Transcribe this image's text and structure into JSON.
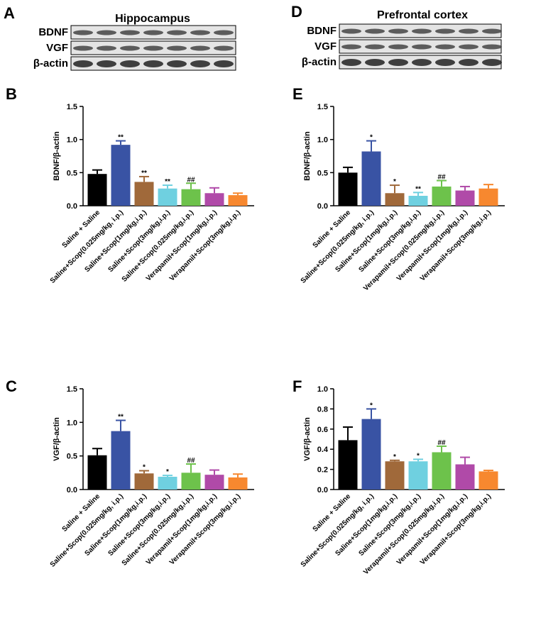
{
  "panels": [
    {
      "letter": "A",
      "title": "Hippocampus",
      "rows": [
        "BDNF",
        "VGF",
        "β-actin"
      ]
    },
    {
      "letter": "D",
      "title": "Prefrontal cortex",
      "rows": [
        "BDNF",
        "VGF",
        "β-actin"
      ]
    }
  ],
  "chart_data": [
    {
      "type": "bar",
      "panel": "B",
      "ylabel": "BDNF/β-actin",
      "categories": [
        "Saline + Saline",
        "Saline+Scop(0.025mg/kg, i.p.)",
        "Saline+Scop(1mg/kg,i.p.)",
        "Saline+Scop(3mg/kg,i.p.)",
        "Saline+Scop(0.025mg/kg,i.p.)",
        "Verapamil+Scop(1mg/kg,i.p.)",
        "Verapamil+Scop(3mg/kg,i.p.)"
      ],
      "values": [
        0.48,
        0.92,
        0.36,
        0.26,
        0.25,
        0.19,
        0.16
      ],
      "errors": [
        0.06,
        0.06,
        0.08,
        0.05,
        0.09,
        0.08,
        0.03
      ],
      "annotations": [
        null,
        "**",
        "**",
        "**",
        "##",
        null,
        null
      ],
      "colors": [
        "#000000",
        "#3953a4",
        "#a0693a",
        "#6fd0e0",
        "#6dc24b",
        "#b04aa8",
        "#f7882f"
      ],
      "ylim": [
        0,
        1.5
      ],
      "yticks": [
        {
          "value": 0,
          "label": "0.0"
        },
        0.5,
        {
          "value": 1,
          "label": "1.0"
        },
        1.5
      ]
    },
    {
      "type": "bar",
      "panel": "E",
      "ylabel": "BDNF/β-actin",
      "categories": [
        "Saline + Saline",
        "Saline+Scop(0.025mg/kg, i.p.)",
        "Saline+Scop(1mg/kg,i.p.)",
        "Saline+Scop(3mg/kg,i.p.)",
        "Verapamil+Scop(0.025mg/kg,i.p.)",
        "Verapamil+Scop(1mg/kg,i.p.)",
        "Verapamil+Scop(3mg/kg,i.p.)"
      ],
      "values": [
        0.5,
        0.82,
        0.19,
        0.15,
        0.29,
        0.23,
        0.26
      ],
      "errors": [
        0.08,
        0.16,
        0.12,
        0.05,
        0.09,
        0.06,
        0.06
      ],
      "annotations": [
        null,
        "*",
        "*",
        "**",
        "##",
        null,
        null
      ],
      "colors": [
        "#000000",
        "#3953a4",
        "#a0693a",
        "#6fd0e0",
        "#6dc24b",
        "#b04aa8",
        "#f7882f"
      ],
      "ylim": [
        0,
        1.5
      ],
      "yticks": [
        {
          "value": 0,
          "label": "0.0"
        },
        0.5,
        {
          "value": 1,
          "label": "1.0"
        },
        1.5
      ]
    },
    {
      "type": "bar",
      "panel": "C",
      "ylabel": "VGF/β-actin",
      "categories": [
        "Saline + Saline",
        "Saline+Scop(0.025mg/kg, i.p.)",
        "Saline+Scop(1mg/kg,i.p.)",
        "Saline+Scop(3mg/kg,i.p.)",
        "Saline+Scop(0.025mg/kg,i.p.)",
        "Verapamil+Scop(1mg/kg,i.p.)",
        "Verapamil+Scop(3mg/kg,i.p.)"
      ],
      "values": [
        0.51,
        0.87,
        0.24,
        0.19,
        0.25,
        0.22,
        0.18
      ],
      "errors": [
        0.1,
        0.16,
        0.04,
        0.02,
        0.13,
        0.07,
        0.05
      ],
      "annotations": [
        null,
        "**",
        "*",
        "*",
        "##",
        null,
        null
      ],
      "colors": [
        "#000000",
        "#3953a4",
        "#a0693a",
        "#6fd0e0",
        "#6dc24b",
        "#b04aa8",
        "#f7882f"
      ],
      "ylim": [
        0,
        1.5
      ],
      "yticks": [
        {
          "value": 0,
          "label": "0.0"
        },
        0.5,
        {
          "value": 1,
          "label": "1.0"
        },
        1.5
      ]
    },
    {
      "type": "bar",
      "panel": "F",
      "ylabel": "VGF/β-actin",
      "categories": [
        "Saline + Saline",
        "Saline+Scop(0.025mg/kg, i.p.)",
        "Saline+Scop(1mg/kg,i.p.)",
        "Saline+Scop(3mg/kg,i.p.)",
        "Verapamil+Scop(0.025mg/kg,i.p.)",
        "Verapamil+Scop(1mg/kg,i.p.)",
        "Verapamil+Scop(3mg/kg,i.p.)"
      ],
      "values": [
        0.49,
        0.7,
        0.28,
        0.28,
        0.37,
        0.25,
        0.18
      ],
      "errors": [
        0.13,
        0.1,
        0.01,
        0.02,
        0.06,
        0.07,
        0.01
      ],
      "annotations": [
        null,
        "*",
        "*",
        "*",
        "##",
        null,
        null
      ],
      "colors": [
        "#000000",
        "#3953a4",
        "#a0693a",
        "#6fd0e0",
        "#6dc24b",
        "#b04aa8",
        "#f7882f"
      ],
      "ylim": [
        0,
        1
      ],
      "yticks": [
        {
          "value": 0,
          "label": "0.0"
        },
        0.2,
        0.4,
        0.6,
        0.8,
        {
          "value": 1,
          "label": "1.0"
        }
      ]
    }
  ]
}
